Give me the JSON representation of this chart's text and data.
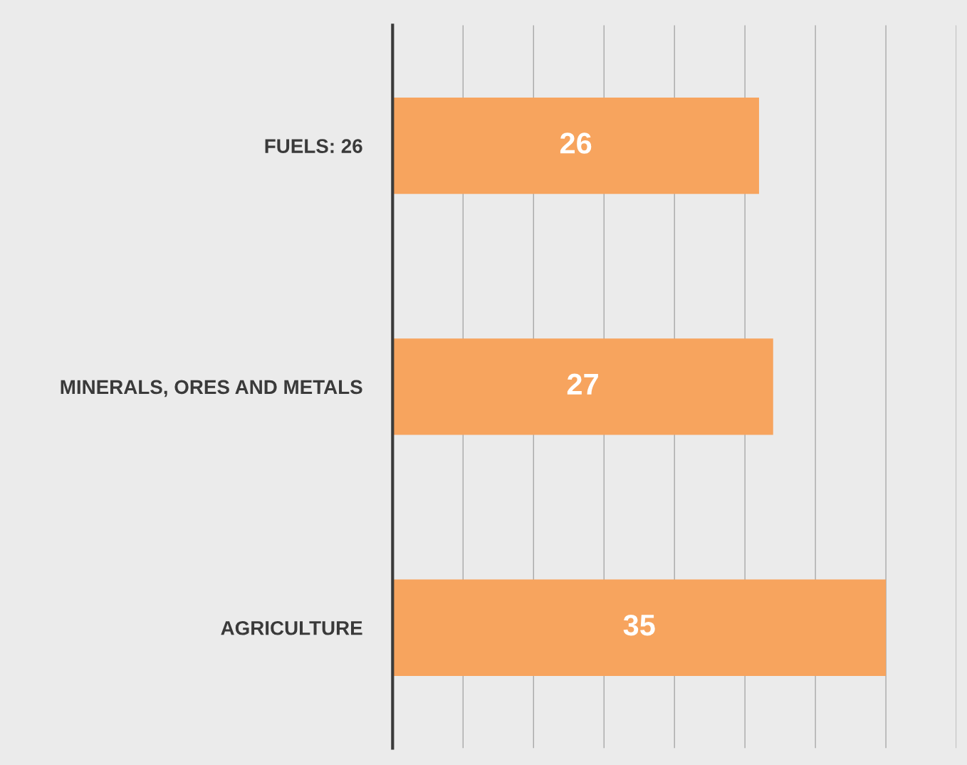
{
  "chart_data": {
    "type": "bar",
    "orientation": "horizontal",
    "categories": [
      "FUELS: 26",
      "MINERALS, ORES AND METALS",
      "AGRICULTURE"
    ],
    "values": [
      26,
      27,
      35
    ],
    "color": "#f7a45e",
    "xlim": [
      0,
      40
    ],
    "xticks": [
      {
        "value": 0,
        "label": null
      },
      {
        "value": 5,
        "label": null
      },
      {
        "value": 10,
        "label": null
      },
      {
        "value": 15,
        "label": null
      },
      {
        "value": 20,
        "label": null
      },
      {
        "value": 25,
        "label": null
      },
      {
        "value": 30,
        "label": null
      },
      {
        "value": 35,
        "label": null
      },
      {
        "value": 40,
        "label": null
      }
    ],
    "grid": "x",
    "tick_labels": "y",
    "data_labels": true
  }
}
